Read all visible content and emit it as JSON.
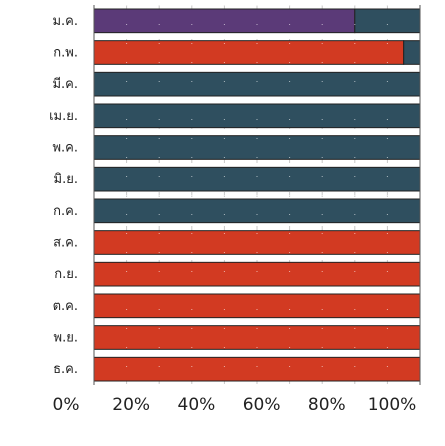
{
  "chart_data": {
    "type": "bar",
    "orientation": "horizontal",
    "stacked": true,
    "percent": true,
    "categories": [
      "ม.ค.",
      "ก.พ.",
      "มี.ค.",
      "เม.ย.",
      "พ.ค.",
      "มิ.ย.",
      "ก.ค.",
      "ส.ค.",
      "ก.ย.",
      "ต.ค.",
      "พ.ย.",
      "ธ.ค."
    ],
    "category_labels": [
      "ม.ค.",
      "ก.พ.",
      "มี.ค.",
      "เม.ย.",
      "พ.ค.",
      "มิ.ย.",
      "ก.ค.",
      "ส.ค.",
      "ก.ย.",
      "ต.ค.",
      "พ.ย.",
      "ธ.ค."
    ],
    "series": [
      {
        "color": "#5b3a78",
        "values": [
          80,
          0,
          0,
          0,
          0,
          0,
          0,
          0,
          0,
          0,
          0,
          0
        ]
      },
      {
        "color": "#d23a22",
        "values": [
          0,
          95,
          0,
          0,
          0,
          0,
          0,
          100,
          100,
          100,
          100,
          100
        ]
      },
      {
        "color": "#2f4f5f",
        "values": [
          20,
          5,
          100,
          100,
          100,
          100,
          100,
          0,
          0,
          0,
          0,
          0
        ]
      }
    ],
    "xlim": [
      0,
      100
    ],
    "x_ticks": [
      "0%",
      "20%",
      "40%",
      "60%",
      "80%",
      "100%"
    ],
    "grid": true
  }
}
